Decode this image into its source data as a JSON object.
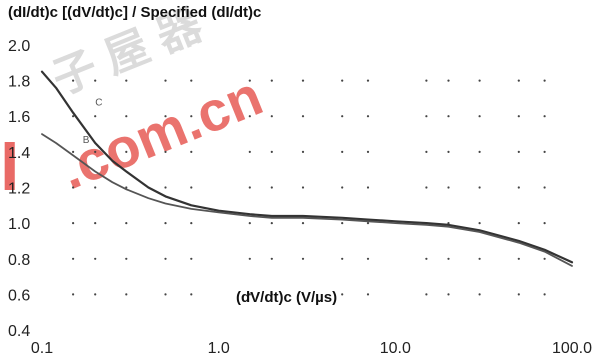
{
  "chart_data": {
    "type": "line",
    "title": "(dI/dt)c [(dV/dt)c] / Specified (dI/dt)c",
    "xlabel": "(dV/dt)c (V/µs)",
    "ylabel": "",
    "x_scale": "log",
    "xlim": [
      0.1,
      100
    ],
    "ylim": [
      0.4,
      2.0
    ],
    "x_ticks": [
      "0.1",
      "1.0",
      "10.0",
      "100.0"
    ],
    "y_ticks": [
      "0.4",
      "0.6",
      "0.8",
      "1.0",
      "1.2",
      "1.4",
      "1.6",
      "1.8",
      "2.0"
    ],
    "grid": "dotted",
    "series": [
      {
        "name": "C",
        "color": "#333333",
        "x": [
          0.1,
          0.12,
          0.15,
          0.2,
          0.25,
          0.3,
          0.4,
          0.5,
          0.7,
          1.0,
          1.5,
          2,
          3,
          5,
          7,
          10,
          15,
          20,
          30,
          50,
          70,
          100
        ],
        "y": [
          1.85,
          1.76,
          1.62,
          1.45,
          1.35,
          1.29,
          1.2,
          1.15,
          1.1,
          1.07,
          1.05,
          1.04,
          1.04,
          1.03,
          1.02,
          1.01,
          1.0,
          0.99,
          0.96,
          0.9,
          0.85,
          0.78
        ]
      },
      {
        "name": "B",
        "color": "#555555",
        "x": [
          0.1,
          0.12,
          0.15,
          0.2,
          0.25,
          0.3,
          0.4,
          0.5,
          0.7,
          1.0,
          1.5,
          2,
          3,
          5,
          7,
          10,
          15,
          20,
          30,
          50,
          70,
          100
        ],
        "y": [
          1.5,
          1.45,
          1.38,
          1.29,
          1.23,
          1.19,
          1.14,
          1.11,
          1.08,
          1.06,
          1.04,
          1.03,
          1.03,
          1.02,
          1.01,
          1.0,
          0.99,
          0.98,
          0.95,
          0.89,
          0.84,
          0.76
        ]
      }
    ]
  },
  "colors": {
    "axis_text": "#222222",
    "grid_dots": "#444444",
    "watermark_red": "#e0302a",
    "watermark_gray": "#c8c8c8"
  },
  "watermark": {
    "glyphs": "子 屋 器",
    "domain": ".com.cn",
    "logo_mark": "I"
  }
}
